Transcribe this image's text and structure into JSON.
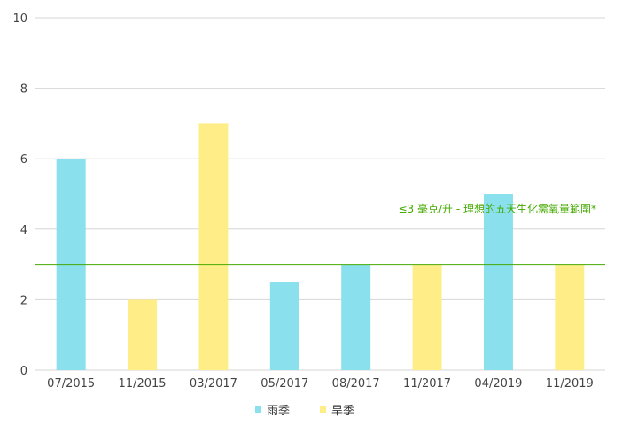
{
  "chart_data": {
    "type": "bar",
    "categories": [
      "07/2015",
      "11/2015",
      "03/2017",
      "05/2017",
      "08/2017",
      "11/2017",
      "04/2019",
      "11/2019"
    ],
    "values": [
      6,
      2,
      7,
      2.5,
      3,
      3,
      5,
      3
    ],
    "season": [
      "rainy",
      "dry",
      "dry",
      "rainy",
      "rainy",
      "dry",
      "rainy",
      "dry"
    ],
    "ylim": [
      0,
      10
    ],
    "yticks": [
      0,
      2,
      4,
      6,
      8,
      10
    ],
    "grid": true,
    "legend": {
      "placement": "bottom",
      "entries": [
        {
          "key": "rainy",
          "label": "雨季",
          "color": "#8ae0ec"
        },
        {
          "key": "dry",
          "label": "旱季",
          "color": "#ffee88"
        }
      ]
    },
    "reference_line": {
      "value": 3,
      "label": "≤3 毫克/升 - 理想的五天生化需氧量範圍*",
      "color": "#44aa00"
    },
    "title": "",
    "xlabel": "",
    "ylabel": ""
  }
}
